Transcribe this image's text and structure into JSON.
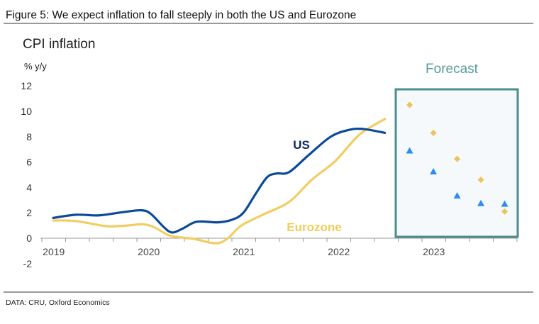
{
  "figure_title": "Figure 5: We expect inflation to fall steeply in both the US and Eurozone",
  "source": "DATA: CRU, Oxford Economics",
  "colors": {
    "us_line": "#0b4a9a",
    "eurozone_line": "#f2cd62",
    "us_forecast": "#2e8cf0",
    "eurozone_forecast": "#e9c35c",
    "forecast_box": "#4a8c8f",
    "forecast_fill": "#f5f9fb"
  },
  "chart_data": {
    "type": "line",
    "title": "CPI inflation",
    "ylabel": "% y/y",
    "xlabel": "",
    "ylim": [
      -2,
      12
    ],
    "yticks": [
      "-2",
      "0",
      "2",
      "4",
      "6",
      "8",
      "10",
      "12"
    ],
    "xticklabels": [
      "2019",
      "2020",
      "2021",
      "2022",
      "2023"
    ],
    "xlim": [
      2019,
      2024
    ],
    "grid": false,
    "forecast_label": "Forecast",
    "series": [
      {
        "name": "US",
        "kind": "line",
        "x": [
          2019.12,
          2019.36,
          2019.6,
          2019.85,
          2020.05,
          2020.15,
          2020.28,
          2020.37,
          2020.48,
          2020.63,
          2020.85,
          2021.0,
          2021.12,
          2021.25,
          2021.37,
          2021.47,
          2021.6,
          2021.8,
          2022.04,
          2022.24,
          2022.39,
          2022.61
        ],
        "y": [
          1.6,
          1.85,
          1.8,
          2.05,
          2.2,
          1.9,
          0.9,
          0.45,
          0.75,
          1.3,
          1.25,
          1.45,
          2.0,
          3.5,
          4.8,
          5.1,
          5.2,
          6.5,
          8.0,
          8.55,
          8.6,
          8.3
        ]
      },
      {
        "name": "Eurozone",
        "kind": "line",
        "x": [
          2019.12,
          2019.36,
          2019.68,
          2019.9,
          2020.07,
          2020.2,
          2020.35,
          2020.6,
          2020.82,
          2020.95,
          2021.1,
          2021.34,
          2021.6,
          2021.84,
          2022.09,
          2022.34,
          2022.61
        ],
        "y": [
          1.4,
          1.35,
          0.95,
          1.0,
          1.1,
          0.8,
          0.2,
          -0.05,
          -0.4,
          -0.05,
          1.0,
          1.9,
          2.85,
          4.6,
          6.1,
          8.15,
          9.4
        ]
      },
      {
        "name": "US forecast",
        "kind": "triangle",
        "x": [
          2022.87,
          2023.12,
          2023.37,
          2023.62,
          2023.87
        ],
        "y": [
          6.9,
          5.25,
          3.35,
          2.75,
          2.7
        ]
      },
      {
        "name": "Eurozone forecast",
        "kind": "diamond",
        "x": [
          2022.87,
          2023.12,
          2023.37,
          2023.62,
          2023.87
        ],
        "y": [
          10.5,
          8.3,
          6.25,
          4.6,
          2.1
        ]
      }
    ],
    "series_labels": [
      "US",
      "Eurozone"
    ]
  }
}
